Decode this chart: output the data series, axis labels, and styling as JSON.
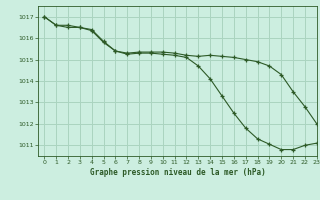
{
  "title": "Graphe pression niveau de la mer (hPa)",
  "bg_color": "#cceee0",
  "grid_color": "#aad4c0",
  "line_color": "#2d5a27",
  "xlim": [
    -0.5,
    23
  ],
  "ylim": [
    1010.5,
    1017.5
  ],
  "yticks": [
    1011,
    1012,
    1013,
    1014,
    1015,
    1016,
    1017
  ],
  "xticks": [
    0,
    1,
    2,
    3,
    4,
    5,
    6,
    7,
    8,
    9,
    10,
    11,
    12,
    13,
    14,
    15,
    16,
    17,
    18,
    19,
    20,
    21,
    22,
    23
  ],
  "series1_x": [
    0,
    1,
    2,
    3,
    4,
    5,
    6,
    7,
    8,
    9,
    10,
    11,
    12,
    13,
    14,
    15,
    16,
    17,
    18,
    19,
    20,
    21,
    22,
    23
  ],
  "series1_y": [
    1017.0,
    1016.6,
    1016.6,
    1016.5,
    1016.4,
    1015.85,
    1015.4,
    1015.3,
    1015.35,
    1015.35,
    1015.35,
    1015.3,
    1015.2,
    1015.15,
    1015.2,
    1015.15,
    1015.1,
    1015.0,
    1014.9,
    1014.7,
    1014.3,
    1013.5,
    1012.8,
    1012.0
  ],
  "series2_x": [
    0,
    1,
    2,
    3,
    4,
    5,
    6,
    7,
    8,
    9,
    10,
    11,
    12,
    13,
    14,
    15,
    16,
    17,
    18,
    19,
    20,
    21,
    22,
    23
  ],
  "series2_y": [
    1017.0,
    1016.6,
    1016.5,
    1016.5,
    1016.35,
    1015.8,
    1015.4,
    1015.25,
    1015.3,
    1015.3,
    1015.25,
    1015.2,
    1015.1,
    1014.7,
    1014.1,
    1013.3,
    1012.5,
    1011.8,
    1011.3,
    1011.05,
    1010.8,
    1010.8,
    1011.0,
    1011.1
  ]
}
